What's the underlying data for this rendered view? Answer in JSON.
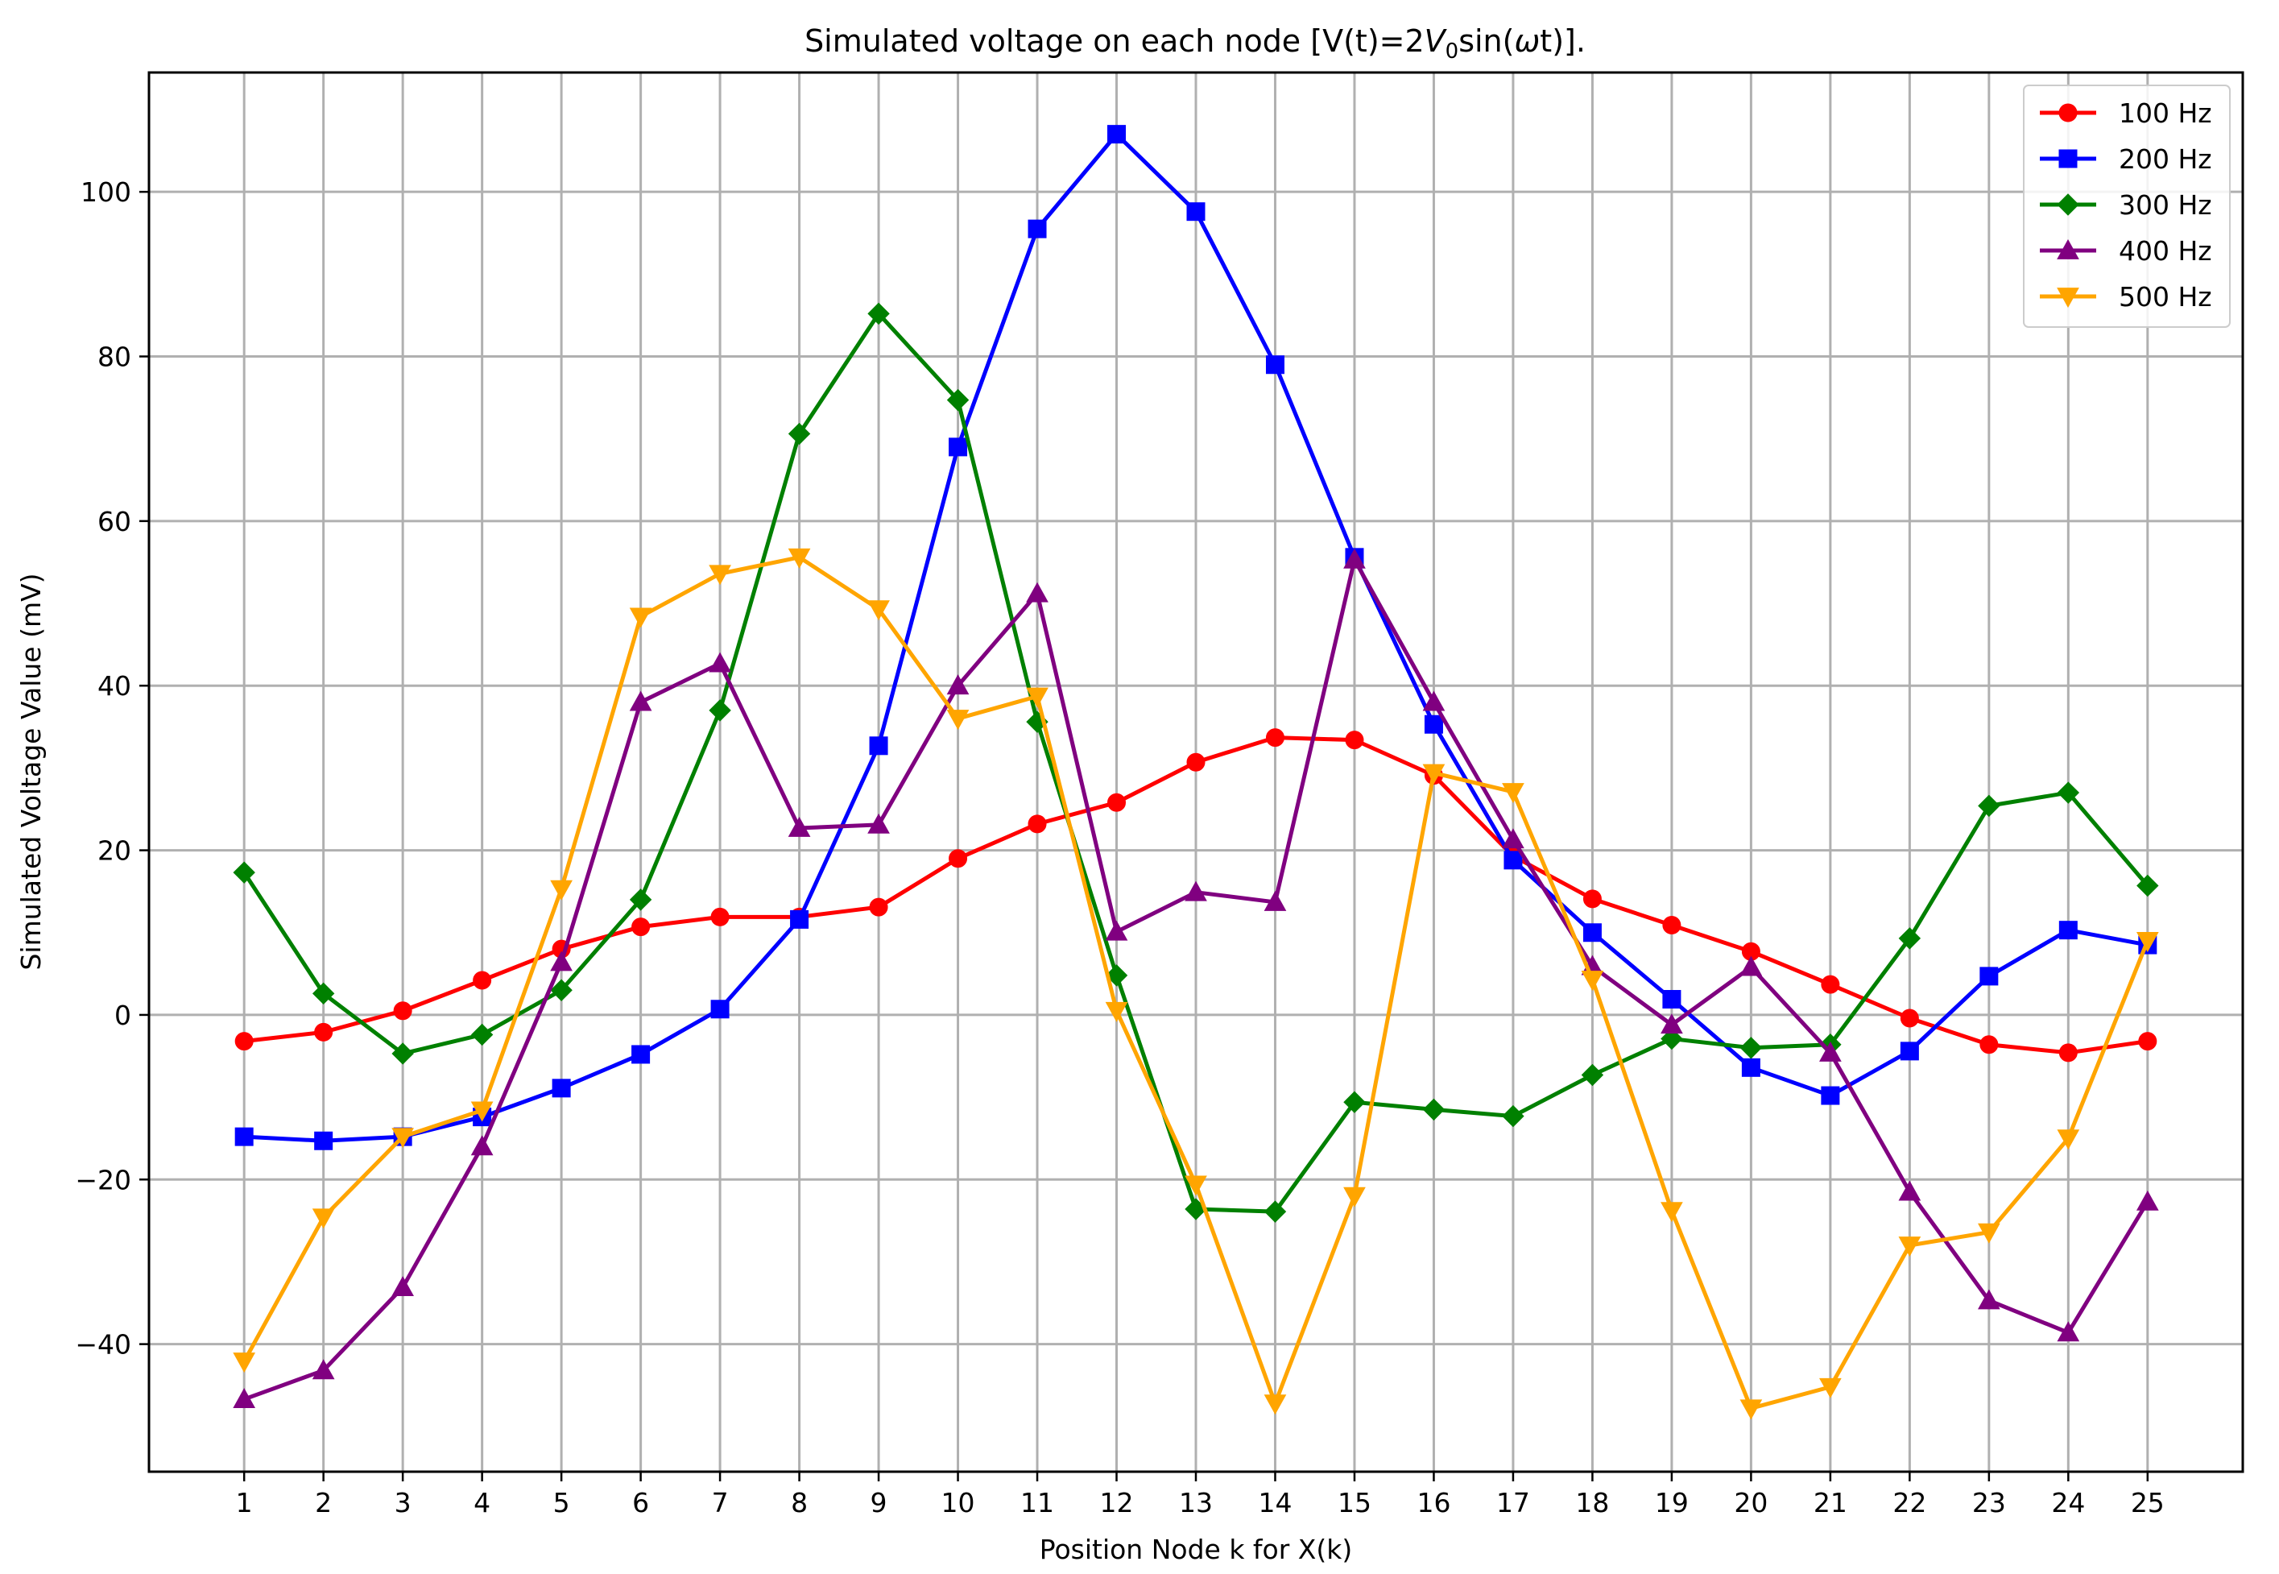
{
  "chart_data": {
    "type": "line",
    "title_main": "Simulated voltage on each node [V(t)=2",
    "title_var": "V",
    "title_sub": "0",
    "title_func": "sin(",
    "title_omega": "ω",
    "title_end": "t)].",
    "xlabel": "Position Node k for X(k)",
    "ylabel": "Simulated Voltage Value (mV)",
    "x": [
      1,
      2,
      3,
      4,
      5,
      6,
      7,
      8,
      9,
      10,
      11,
      12,
      13,
      14,
      15,
      16,
      17,
      18,
      19,
      20,
      21,
      22,
      23,
      24,
      25
    ],
    "xlim": [
      -0.2,
      26.2
    ],
    "ylim": [
      -55.5,
      114.5
    ],
    "yticks": [
      -40,
      -20,
      0,
      20,
      40,
      60,
      80,
      100
    ],
    "ytick_labels": [
      "−40",
      "−20",
      "0",
      "20",
      "40",
      "60",
      "80",
      "100"
    ],
    "grid": true,
    "legend_position": "top-right",
    "series": [
      {
        "name": "100 Hz",
        "color": "#ff0000",
        "marker": "circle",
        "values": [
          -3.2,
          -2.1,
          0.5,
          4.2,
          8.0,
          10.7,
          11.9,
          11.9,
          13.1,
          19.0,
          23.2,
          25.8,
          30.7,
          33.7,
          33.4,
          29.1,
          19.3,
          14.1,
          10.9,
          7.7,
          3.7,
          -0.4,
          -3.6,
          -4.6,
          -3.2
        ]
      },
      {
        "name": "200 Hz",
        "color": "#0000ff",
        "marker": "square",
        "values": [
          -14.8,
          -15.3,
          -14.8,
          -12.4,
          -8.9,
          -4.8,
          0.7,
          11.6,
          32.7,
          69.0,
          95.5,
          107.0,
          97.6,
          79.0,
          55.6,
          35.3,
          18.8,
          10.0,
          1.9,
          -6.4,
          -9.8,
          -4.4,
          4.7,
          10.3,
          8.5
        ]
      },
      {
        "name": "300 Hz",
        "color": "#008000",
        "marker": "diamond",
        "values": [
          17.3,
          2.6,
          -4.7,
          -2.4,
          3.0,
          14.0,
          37.0,
          70.6,
          85.2,
          74.7,
          35.6,
          4.8,
          -23.6,
          -23.9,
          -10.6,
          -11.5,
          -12.3,
          -7.3,
          -2.9,
          -4.0,
          -3.6,
          9.3,
          25.4,
          27.0,
          15.7
        ]
      },
      {
        "name": "400 Hz",
        "color": "#800080",
        "marker": "triangle-up",
        "values": [
          -46.7,
          -43.2,
          -33.1,
          -16.0,
          6.4,
          38.0,
          42.7,
          22.7,
          23.1,
          40.0,
          51.2,
          10.1,
          14.9,
          13.7,
          55.3,
          38.0,
          21.3,
          5.9,
          -1.2,
          5.8,
          -4.6,
          -21.5,
          -34.7,
          -38.6,
          -22.7
        ]
      },
      {
        "name": "500 Hz",
        "color": "#ffa500",
        "marker": "triangle-down",
        "values": [
          -42.1,
          -24.6,
          -14.8,
          -11.6,
          15.3,
          48.4,
          53.6,
          55.6,
          49.3,
          36.0,
          38.7,
          0.5,
          -20.6,
          -47.2,
          -22.0,
          29.4,
          27.1,
          4.3,
          -23.8,
          -47.8,
          -45.2,
          -28.0,
          -26.4,
          -15.0,
          9.0
        ]
      }
    ]
  }
}
